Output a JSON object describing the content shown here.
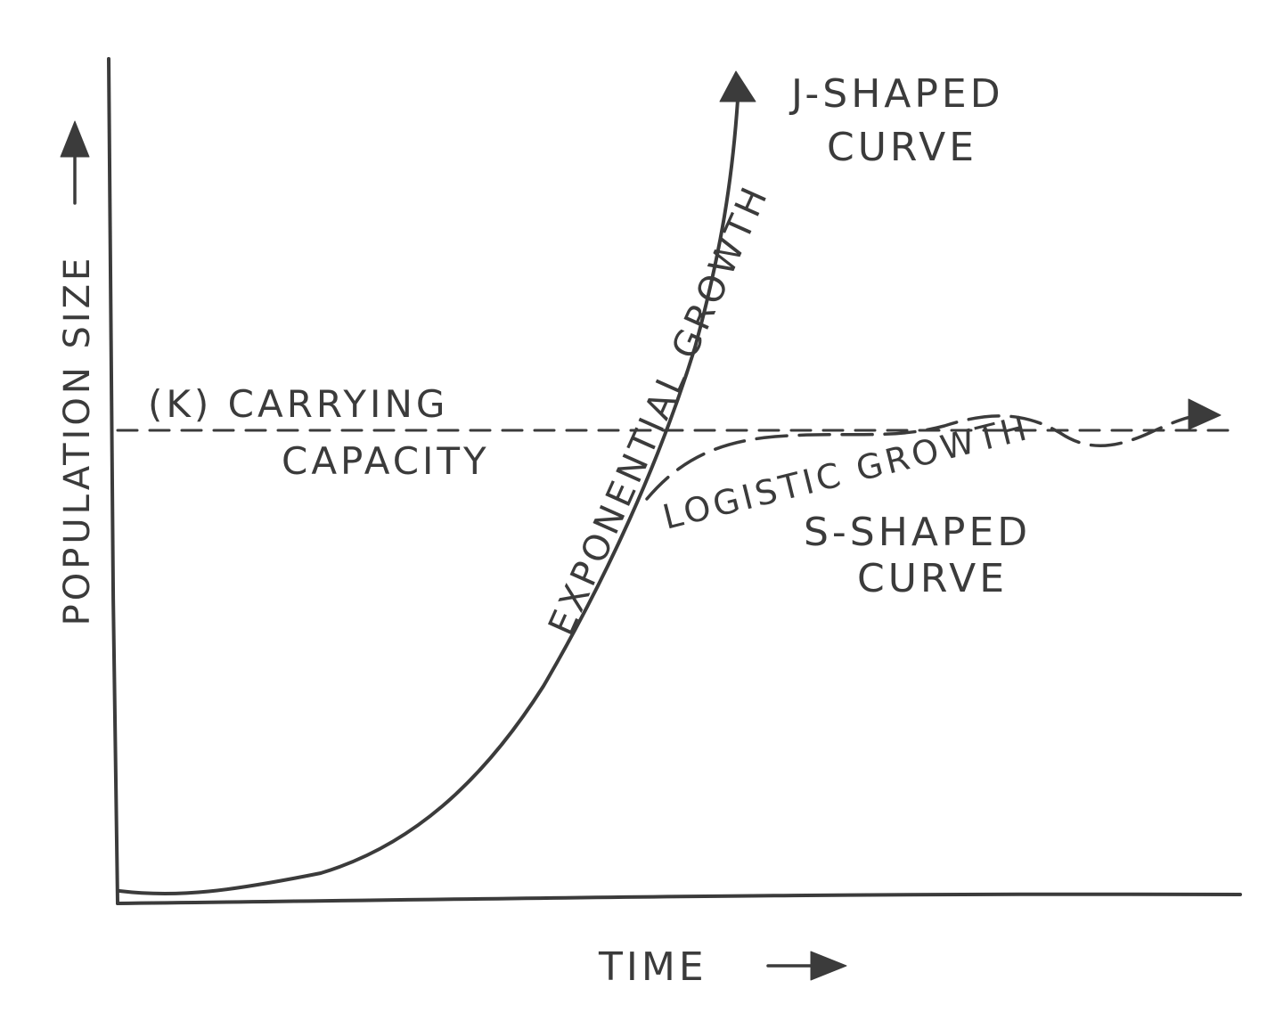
{
  "y_axis_label": "POPULATION SIZE",
  "x_axis_label": "TIME",
  "carrying_capacity": {
    "line1": "(K) CARRYING",
    "line2": "CAPACITY"
  },
  "j_curve": {
    "line1": "J-SHAPED",
    "line2": "CURVE",
    "growth_label": "EXPONENTIAL GROWTH"
  },
  "s_curve": {
    "line1": "S-SHAPED",
    "line2": "CURVE",
    "growth_label": "LOGISTIC GROWTH"
  },
  "ink_color": "#3b3b3b"
}
